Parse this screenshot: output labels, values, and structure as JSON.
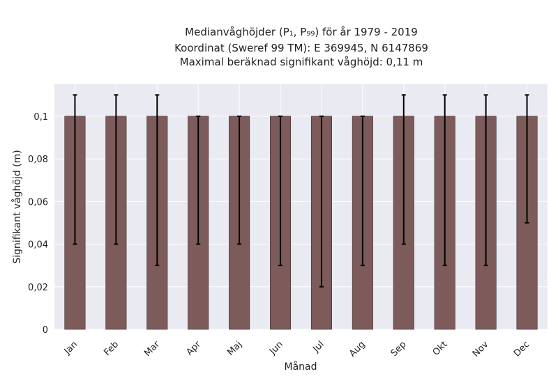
{
  "chart_data": {
    "type": "bar",
    "title_lines": [
      "Medianvåghöjder (P₁, P₉₉) för år 1979 - 2019",
      "Koordinat (Sweref 99 TM): E 369945, N 6147869",
      "Maximal beräknad signifikant våghöjd: 0,11 m"
    ],
    "xlabel": "Månad",
    "ylabel": "Signifikant våghöjd (m)",
    "categories": [
      "Jan",
      "Feb",
      "Mar",
      "Apr",
      "Maj",
      "Jun",
      "Jul",
      "Aug",
      "Sep",
      "Okt",
      "Nov",
      "Dec"
    ],
    "values": [
      0.1,
      0.1,
      0.1,
      0.1,
      0.1,
      0.1,
      0.1,
      0.1,
      0.1,
      0.1,
      0.1,
      0.1
    ],
    "lower": [
      0.04,
      0.04,
      0.03,
      0.04,
      0.04,
      0.03,
      0.02,
      0.03,
      0.04,
      0.03,
      0.03,
      0.05
    ],
    "upper": [
      0.11,
      0.11,
      0.11,
      0.1,
      0.1,
      0.1,
      0.1,
      0.1,
      0.11,
      0.11,
      0.11,
      0.11
    ],
    "ylim": [
      0,
      0.115
    ],
    "yticks": [
      0,
      0.02,
      0.04,
      0.06,
      0.08,
      0.1
    ],
    "ytick_labels": [
      "0",
      "0,02",
      "0,04",
      "0,06",
      "0,08",
      "0,1"
    ],
    "grid": true,
    "bar_color": "#7d5b5b",
    "plot_background": "#eaeaf2",
    "grid_color": "#ffffff",
    "errorbar_color": "#000000"
  }
}
